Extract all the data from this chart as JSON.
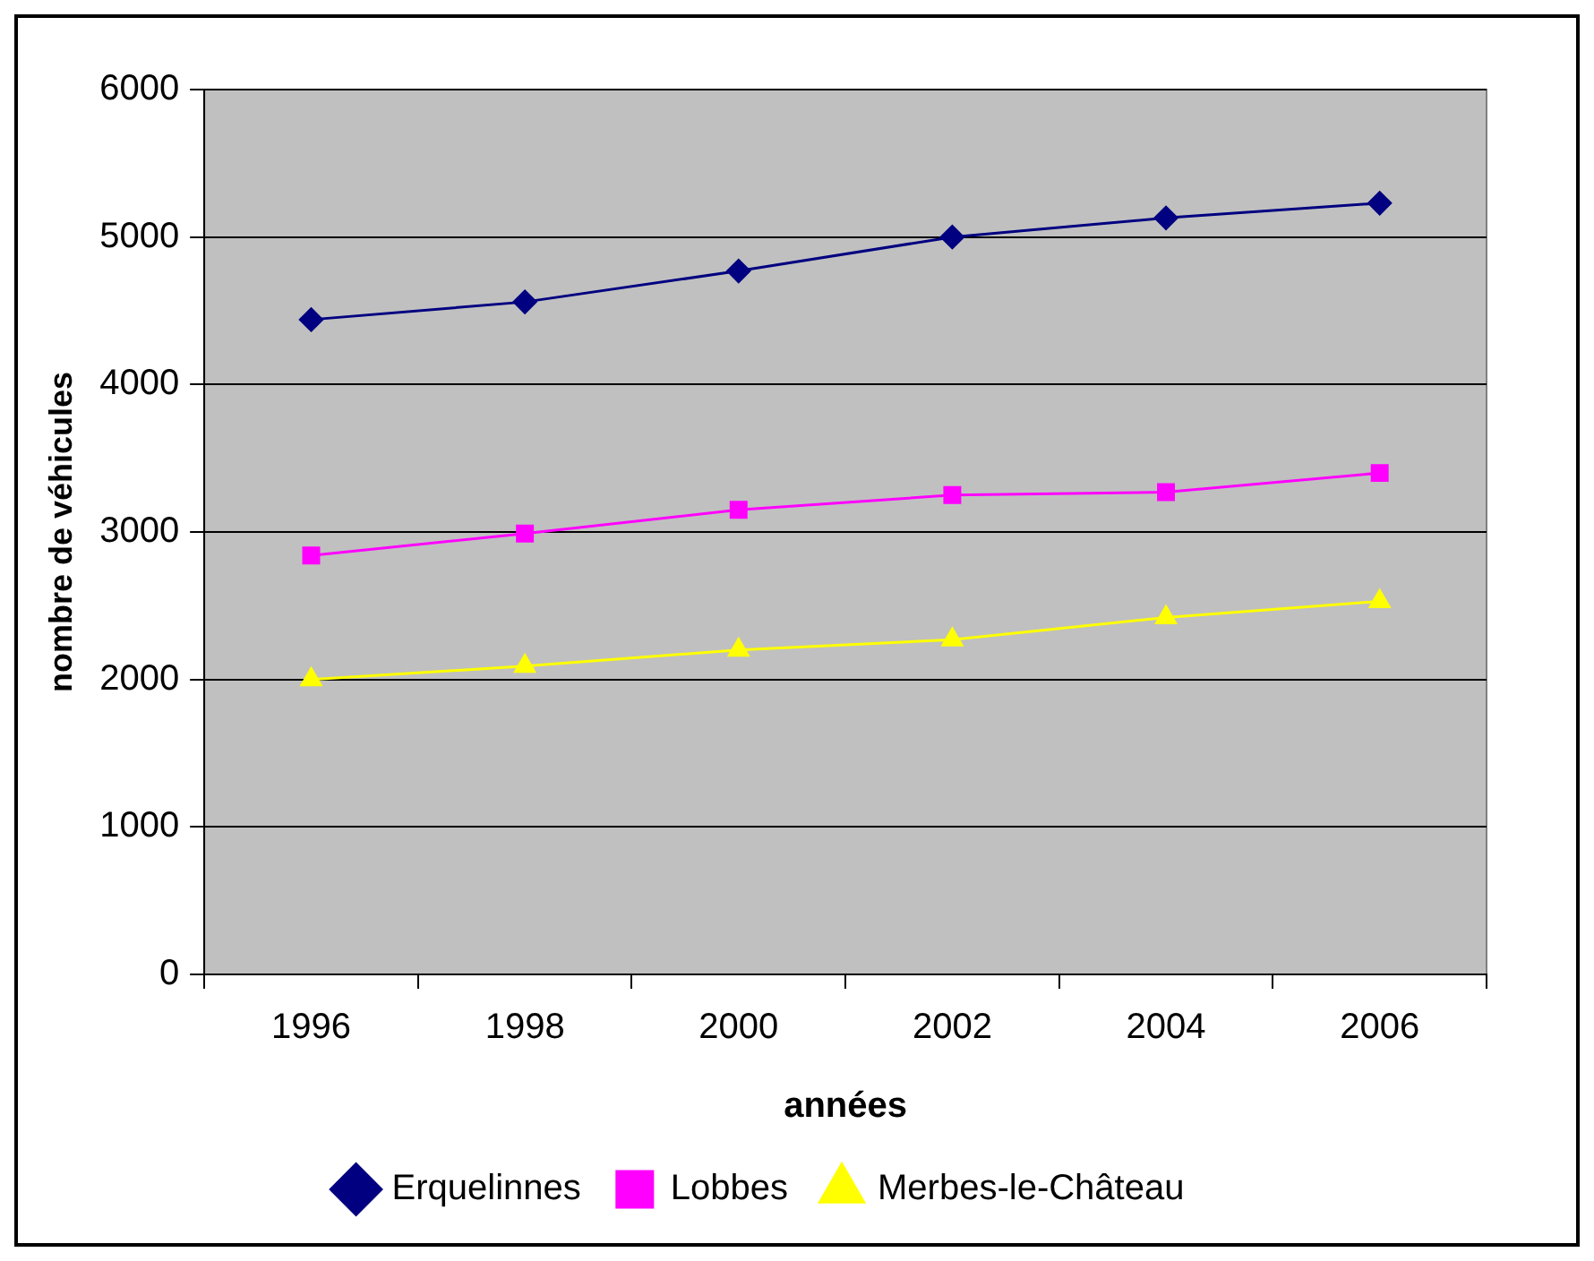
{
  "chart_data": {
    "type": "line",
    "xlabel": "années",
    "ylabel": "nombre de véhicules",
    "categories": [
      "1996",
      "1998",
      "2000",
      "2002",
      "2004",
      "2006"
    ],
    "series": [
      {
        "name": "Erquelinnes",
        "color": "#000080",
        "marker": "diamond",
        "values": [
          4440,
          4560,
          4770,
          5000,
          5130,
          5230
        ]
      },
      {
        "name": "Lobbes",
        "color": "#ff00ff",
        "marker": "square",
        "values": [
          2840,
          2990,
          3150,
          3250,
          3270,
          3400
        ]
      },
      {
        "name": "Merbes-le-Château",
        "color": "#ffff00",
        "marker": "triangle",
        "values": [
          2000,
          2090,
          2200,
          2270,
          2420,
          2530
        ]
      }
    ],
    "ylim": [
      0,
      6000
    ],
    "yticks": [
      0,
      1000,
      2000,
      3000,
      4000,
      5000,
      6000
    ],
    "grid": "y",
    "legend": "bottom",
    "line_style": "solid"
  }
}
